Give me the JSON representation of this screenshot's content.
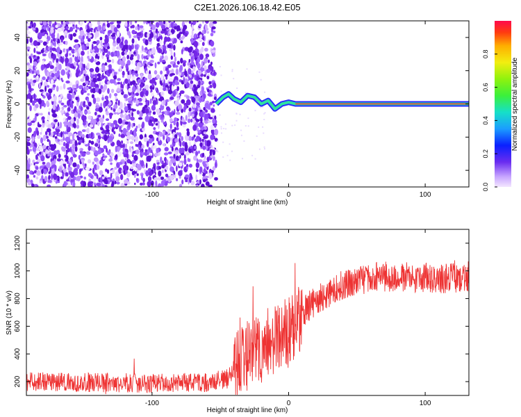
{
  "title": "C2E1.2026.106.18.42.E05",
  "chart_data": [
    {
      "type": "heatmap",
      "xlabel": "Height of straight line (km)",
      "ylabel": "Frequency (Hz)",
      "xlim": [
        -192,
        132
      ],
      "ylim": [
        -50,
        50
      ],
      "x_ticks": [
        -100,
        0,
        100
      ],
      "x_tick_labels": [
        "-100",
        "0",
        "100"
      ],
      "y_ticks": [
        -40,
        -20,
        0,
        20,
        40
      ],
      "y_tick_labels": [
        "-40",
        "-20",
        "0",
        "20",
        "40"
      ],
      "noise_region_x": [
        -192,
        -53
      ],
      "signal_start_x": -53,
      "carrier_frequency_hz": 0,
      "colorbar": {
        "label": "Normalized spectral amplitude",
        "range": [
          0,
          1
        ],
        "ticks": [
          0,
          0.2,
          0.4,
          0.6,
          0.8
        ],
        "tick_labels": [
          "0.0",
          "0.2",
          "0.4",
          "0.6",
          "0.8"
        ]
      },
      "signal_track": [
        {
          "x": -53,
          "y": 0
        },
        {
          "x": -48,
          "y": 4
        },
        {
          "x": -44,
          "y": 6
        },
        {
          "x": -40,
          "y": 3
        },
        {
          "x": -35,
          "y": 1
        },
        {
          "x": -30,
          "y": 5
        },
        {
          "x": -25,
          "y": 4
        },
        {
          "x": -20,
          "y": 0
        },
        {
          "x": -15,
          "y": 2
        },
        {
          "x": -10,
          "y": -3
        },
        {
          "x": -5,
          "y": 0
        },
        {
          "x": 0,
          "y": 1
        },
        {
          "x": 5,
          "y": 0
        },
        {
          "x": 10,
          "y": 0
        },
        {
          "x": 132,
          "y": 0
        }
      ]
    },
    {
      "type": "line",
      "xlabel": "Height of straight line (km)",
      "ylabel": "SNR (10 * v/v)",
      "xlim": [
        -192,
        132
      ],
      "ylim": [
        100,
        1300
      ],
      "x_ticks": [
        -100,
        0,
        100
      ],
      "x_tick_labels": [
        "-100",
        "0",
        "100"
      ],
      "y_ticks": [
        200,
        400,
        600,
        800,
        1000,
        1200
      ],
      "y_tick_labels": [
        "200",
        "400",
        "600",
        "800",
        "1000",
        "1200"
      ],
      "color": "#ee3333",
      "series": [
        {
          "x": [
            -192,
            -150,
            -100,
            -60,
            -45,
            -35,
            -25,
            -15,
            -5,
            0,
            10,
            20,
            30,
            40,
            50,
            60,
            70,
            80,
            90,
            100,
            110,
            120,
            132
          ],
          "y": [
            200,
            195,
            190,
            195,
            220,
            350,
            420,
            480,
            520,
            560,
            700,
            790,
            850,
            900,
            930,
            950,
            960,
            960,
            950,
            950,
            945,
            950,
            960
          ]
        }
      ]
    }
  ],
  "colors": {
    "noise": "#7c3aed",
    "carrier_line": "#ff2a2a",
    "snr_line": "#ee3333"
  }
}
